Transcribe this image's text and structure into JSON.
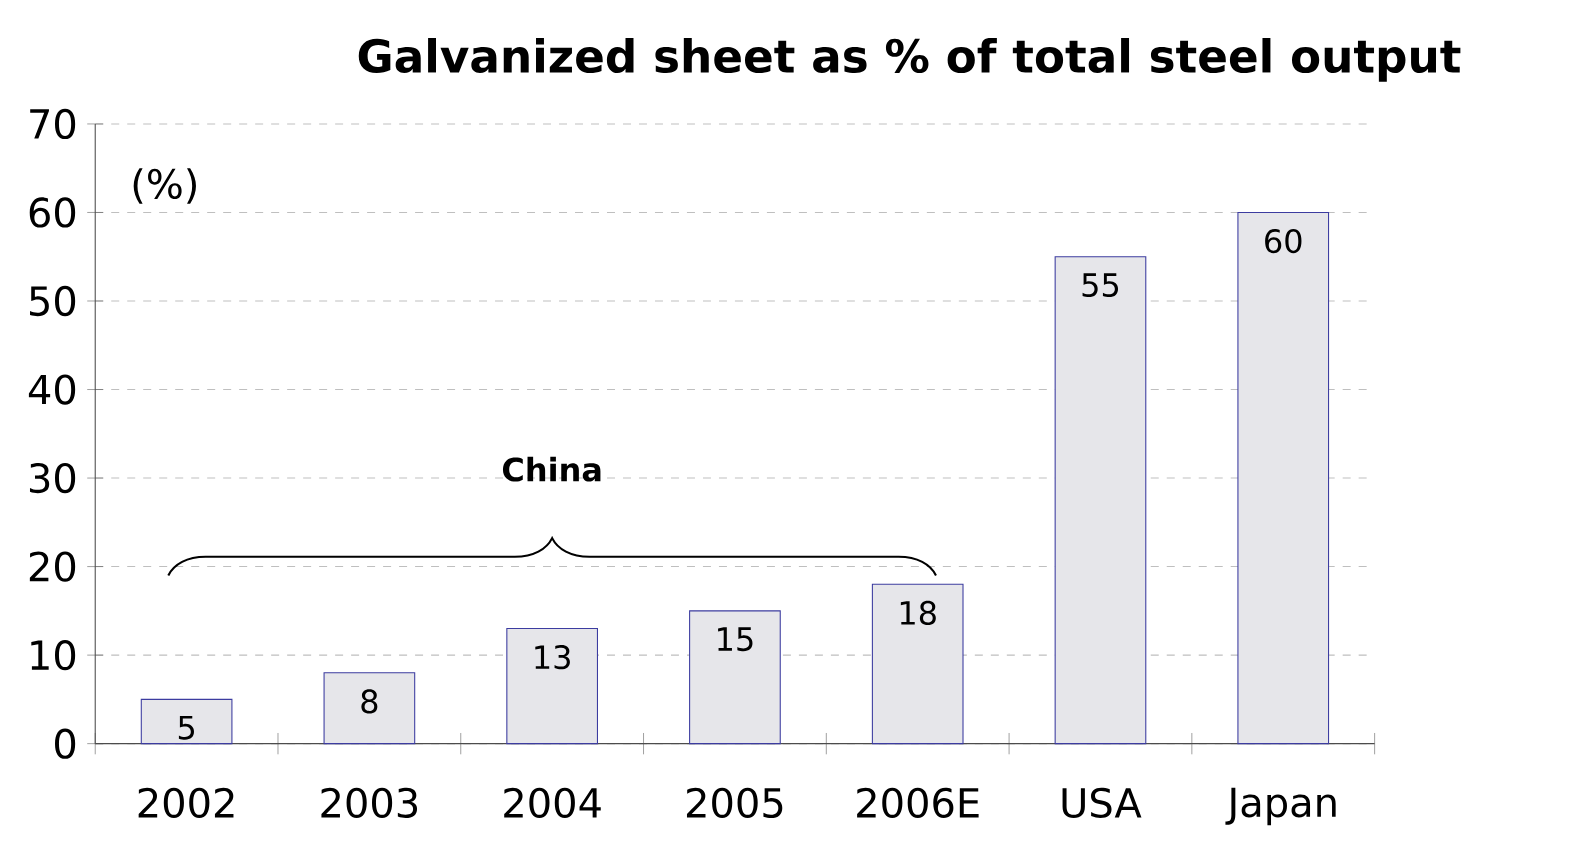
{
  "chart_data": {
    "type": "bar",
    "title": "Galvanized sheet as % of total steel output",
    "ylabel": "(%)",
    "categories": [
      "2002",
      "2003",
      "2004",
      "2005",
      "2006E",
      "USA",
      "Japan"
    ],
    "values": [
      5,
      8,
      13,
      15,
      18,
      55,
      60
    ],
    "color": "#e6e6ea",
    "ylim": [
      0,
      70
    ],
    "yticks": [
      0,
      10,
      20,
      30,
      40,
      50,
      60,
      70
    ],
    "grid": "y",
    "data_labels": true,
    "annotations": [
      "China"
    ]
  }
}
